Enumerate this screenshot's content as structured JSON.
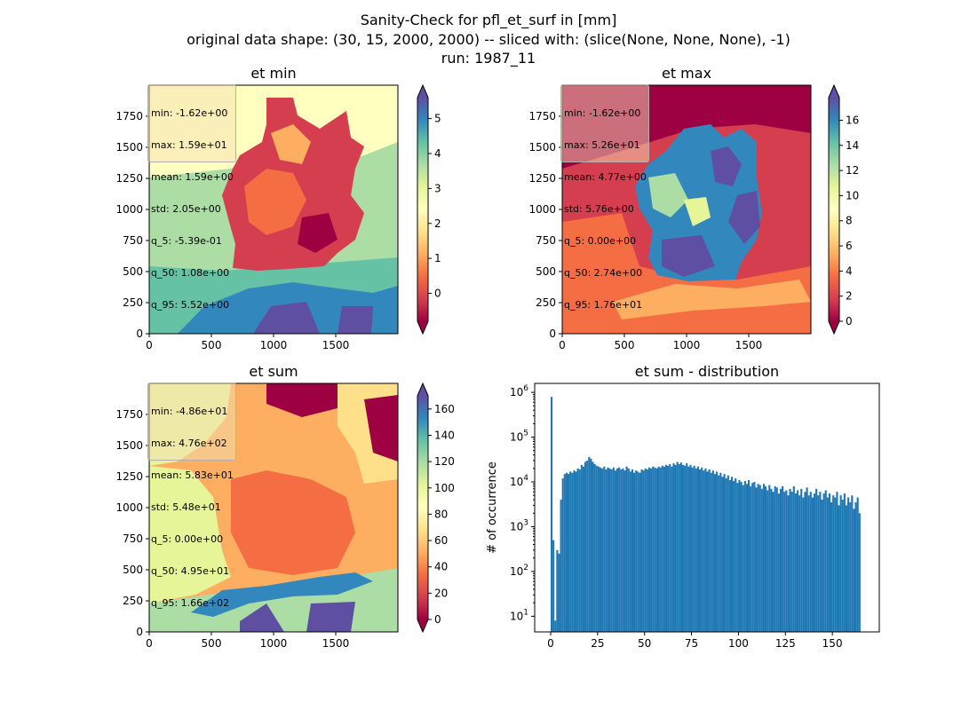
{
  "figure": {
    "title_lines": [
      "Sanity-Check for pfl_et_surf in [mm]",
      "original data shape: (30, 15, 2000, 2000) -- sliced with: (slice(None, None, None), -1)",
      "run: 1987_11"
    ]
  },
  "colors": {
    "colormap": "Spectral",
    "spectral_stops": [
      "#9e0142",
      "#d53e4f",
      "#f46d43",
      "#fdae61",
      "#fee08b",
      "#ffffbf",
      "#e6f598",
      "#abdda4",
      "#66c2a5",
      "#3288bd",
      "#5e4fa2"
    ],
    "hist_bar": "#1f77b4"
  },
  "chart_data": [
    {
      "type": "heatmap",
      "title": "et min",
      "xlim": [
        0,
        2000
      ],
      "ylim": [
        0,
        2000
      ],
      "xticks": [
        "0",
        "500",
        "1000",
        "1500"
      ],
      "yticks": [
        "0",
        "250",
        "500",
        "750",
        "1000",
        "1250",
        "1500",
        "1750"
      ],
      "colorbar": {
        "min": -0.8,
        "max": 5.6,
        "ticks": [
          "0",
          "1",
          "2",
          "3",
          "4",
          "5"
        ],
        "tick_values": [
          0,
          1,
          2,
          3,
          4,
          5
        ],
        "extend": "both"
      },
      "stats": [
        "min: -1.62e+00",
        "max: 1.59e+01",
        "mean: 1.59e+00",
        "std: 2.05e+00",
        "q_5: -5.39e-01",
        "q_50: 1.08e+00",
        "q_95: 5.52e+00"
      ]
    },
    {
      "type": "heatmap",
      "title": "et max",
      "xlim": [
        0,
        2000
      ],
      "ylim": [
        0,
        2000
      ],
      "xticks": [
        "0",
        "500",
        "1000",
        "1500"
      ],
      "yticks": [
        "0",
        "250",
        "500",
        "750",
        "1000",
        "1250",
        "1500",
        "1750"
      ],
      "colorbar": {
        "min": 0,
        "max": 17.8,
        "ticks": [
          "0",
          "2",
          "4",
          "6",
          "8",
          "10",
          "12",
          "14",
          "16"
        ],
        "tick_values": [
          0,
          2,
          4,
          6,
          8,
          10,
          12,
          14,
          16
        ],
        "extend": "both"
      },
      "stats": [
        "min: -1.62e+00",
        "max: 5.26e+01",
        "mean: 4.77e+00",
        "std: 5.76e+00",
        "q_5: 0.00e+00",
        "q_50: 2.74e+00",
        "q_95: 1.76e+01"
      ]
    },
    {
      "type": "heatmap",
      "title": "et sum",
      "xlim": [
        0,
        2000
      ],
      "ylim": [
        0,
        2000
      ],
      "xticks": [
        "0",
        "500",
        "1000",
        "1500"
      ],
      "yticks": [
        "0",
        "250",
        "500",
        "750",
        "1000",
        "1250",
        "1500",
        "1750"
      ],
      "colorbar": {
        "min": 0,
        "max": 170,
        "ticks": [
          "0",
          "20",
          "40",
          "60",
          "80",
          "100",
          "120",
          "140",
          "160"
        ],
        "tick_values": [
          0,
          20,
          40,
          60,
          80,
          100,
          120,
          140,
          160
        ],
        "extend": "both"
      },
      "stats": [
        "min: -4.86e+01",
        "max: 4.76e+02",
        "mean: 5.83e+01",
        "std: 5.48e+01",
        "q_5: 0.00e+00",
        "q_50: 4.95e+01",
        "q_95: 1.66e+02"
      ]
    },
    {
      "type": "bar",
      "title": "et sum - distribution",
      "ylabel": "# of occurrence",
      "yscale": "log",
      "xlim": [
        -8.5,
        175
      ],
      "ylim_log10": [
        0.65,
        6.2
      ],
      "xticks": [
        "0",
        "25",
        "50",
        "75",
        "100",
        "125",
        "150"
      ],
      "xtick_values": [
        0,
        25,
        50,
        75,
        100,
        125,
        150
      ],
      "yticks_exp": [
        "1",
        "2",
        "3",
        "4",
        "5",
        "6"
      ],
      "bin_width": 1,
      "bins": [
        {
          "x": 0,
          "count": 790000
        },
        {
          "x": 1,
          "count": 500
        },
        {
          "x": 2,
          "count": 8
        },
        {
          "x": 3,
          "count": 300
        },
        {
          "x": 4,
          "count": 250
        },
        {
          "x": 5,
          "count": 4000
        },
        {
          "x": 6,
          "count": 12000
        },
        {
          "x": 7,
          "count": 15000
        },
        {
          "x": 8,
          "count": 16000
        },
        {
          "x": 9,
          "count": 15000
        },
        {
          "x": 10,
          "count": 17000
        },
        {
          "x": 11,
          "count": 16000
        },
        {
          "x": 12,
          "count": 18000
        },
        {
          "x": 13,
          "count": 17000
        },
        {
          "x": 14,
          "count": 20000
        },
        {
          "x": 15,
          "count": 19000
        },
        {
          "x": 16,
          "count": 24000
        },
        {
          "x": 17,
          "count": 22000
        },
        {
          "x": 18,
          "count": 28000
        },
        {
          "x": 19,
          "count": 30000
        },
        {
          "x": 20,
          "count": 36000
        },
        {
          "x": 21,
          "count": 33000
        },
        {
          "x": 22,
          "count": 28000
        },
        {
          "x": 23,
          "count": 25000
        },
        {
          "x": 24,
          "count": 23000
        },
        {
          "x": 25,
          "count": 22000
        },
        {
          "x": 26,
          "count": 21000
        },
        {
          "x": 27,
          "count": 20000
        },
        {
          "x": 28,
          "count": 22000
        },
        {
          "x": 29,
          "count": 19000
        },
        {
          "x": 30,
          "count": 21000
        },
        {
          "x": 31,
          "count": 20000
        },
        {
          "x": 32,
          "count": 19000
        },
        {
          "x": 33,
          "count": 21000
        },
        {
          "x": 34,
          "count": 18000
        },
        {
          "x": 35,
          "count": 20000
        },
        {
          "x": 36,
          "count": 21000
        },
        {
          "x": 37,
          "count": 19000
        },
        {
          "x": 38,
          "count": 20000
        },
        {
          "x": 39,
          "count": 18000
        },
        {
          "x": 40,
          "count": 22000
        },
        {
          "x": 41,
          "count": 20000
        },
        {
          "x": 42,
          "count": 17000
        },
        {
          "x": 43,
          "count": 19000
        },
        {
          "x": 44,
          "count": 16000
        },
        {
          "x": 45,
          "count": 18000
        },
        {
          "x": 46,
          "count": 17000
        },
        {
          "x": 47,
          "count": 16000
        },
        {
          "x": 48,
          "count": 19000
        },
        {
          "x": 49,
          "count": 18000
        },
        {
          "x": 50,
          "count": 20000
        },
        {
          "x": 51,
          "count": 19000
        },
        {
          "x": 52,
          "count": 21000
        },
        {
          "x": 53,
          "count": 20000
        },
        {
          "x": 54,
          "count": 22000
        },
        {
          "x": 55,
          "count": 21000
        },
        {
          "x": 56,
          "count": 20000
        },
        {
          "x": 57,
          "count": 22000
        },
        {
          "x": 58,
          "count": 21000
        },
        {
          "x": 59,
          "count": 23000
        },
        {
          "x": 60,
          "count": 22000
        },
        {
          "x": 61,
          "count": 24000
        },
        {
          "x": 62,
          "count": 23000
        },
        {
          "x": 63,
          "count": 25000
        },
        {
          "x": 64,
          "count": 22000
        },
        {
          "x": 65,
          "count": 26000
        },
        {
          "x": 66,
          "count": 24000
        },
        {
          "x": 67,
          "count": 28000
        },
        {
          "x": 68,
          "count": 25000
        },
        {
          "x": 69,
          "count": 27000
        },
        {
          "x": 70,
          "count": 24000
        },
        {
          "x": 71,
          "count": 23000
        },
        {
          "x": 72,
          "count": 26000
        },
        {
          "x": 73,
          "count": 22000
        },
        {
          "x": 74,
          "count": 24000
        },
        {
          "x": 75,
          "count": 21000
        },
        {
          "x": 76,
          "count": 23000
        },
        {
          "x": 77,
          "count": 20000
        },
        {
          "x": 78,
          "count": 22000
        },
        {
          "x": 79,
          "count": 19000
        },
        {
          "x": 80,
          "count": 21000
        },
        {
          "x": 81,
          "count": 18000
        },
        {
          "x": 82,
          "count": 20000
        },
        {
          "x": 83,
          "count": 17000
        },
        {
          "x": 84,
          "count": 19000
        },
        {
          "x": 85,
          "count": 16000
        },
        {
          "x": 86,
          "count": 18000
        },
        {
          "x": 87,
          "count": 15000
        },
        {
          "x": 88,
          "count": 17000
        },
        {
          "x": 89,
          "count": 14000
        },
        {
          "x": 90,
          "count": 16000
        },
        {
          "x": 91,
          "count": 13000
        },
        {
          "x": 92,
          "count": 15000
        },
        {
          "x": 93,
          "count": 12000
        },
        {
          "x": 94,
          "count": 14000
        },
        {
          "x": 95,
          "count": 11000
        },
        {
          "x": 96,
          "count": 13000
        },
        {
          "x": 97,
          "count": 10500
        },
        {
          "x": 98,
          "count": 12000
        },
        {
          "x": 99,
          "count": 9500
        },
        {
          "x": 100,
          "count": 11000
        },
        {
          "x": 101,
          "count": 10000
        },
        {
          "x": 102,
          "count": 8500
        },
        {
          "x": 103,
          "count": 10500
        },
        {
          "x": 104,
          "count": 9000
        },
        {
          "x": 105,
          "count": 11000
        },
        {
          "x": 106,
          "count": 8000
        },
        {
          "x": 107,
          "count": 9500
        },
        {
          "x": 108,
          "count": 10000
        },
        {
          "x": 109,
          "count": 7500
        },
        {
          "x": 110,
          "count": 9000
        },
        {
          "x": 111,
          "count": 8500
        },
        {
          "x": 112,
          "count": 7000
        },
        {
          "x": 113,
          "count": 9000
        },
        {
          "x": 114,
          "count": 8000
        },
        {
          "x": 115,
          "count": 6500
        },
        {
          "x": 116,
          "count": 8500
        },
        {
          "x": 117,
          "count": 7000
        },
        {
          "x": 118,
          "count": 6000
        },
        {
          "x": 119,
          "count": 8000
        },
        {
          "x": 120,
          "count": 7500
        },
        {
          "x": 121,
          "count": 5500
        },
        {
          "x": 122,
          "count": 7000
        },
        {
          "x": 123,
          "count": 8000
        },
        {
          "x": 124,
          "count": 6000
        },
        {
          "x": 125,
          "count": 6500
        },
        {
          "x": 126,
          "count": 5000
        },
        {
          "x": 127,
          "count": 7000
        },
        {
          "x": 128,
          "count": 6000
        },
        {
          "x": 129,
          "count": 8000
        },
        {
          "x": 130,
          "count": 5500
        },
        {
          "x": 131,
          "count": 6500
        },
        {
          "x": 132,
          "count": 5000
        },
        {
          "x": 133,
          "count": 7000
        },
        {
          "x": 134,
          "count": 4500
        },
        {
          "x": 135,
          "count": 6000
        },
        {
          "x": 136,
          "count": 7500
        },
        {
          "x": 137,
          "count": 5000
        },
        {
          "x": 138,
          "count": 6000
        },
        {
          "x": 139,
          "count": 4500
        },
        {
          "x": 140,
          "count": 5500
        },
        {
          "x": 141,
          "count": 7000
        },
        {
          "x": 142,
          "count": 5000
        },
        {
          "x": 143,
          "count": 6000
        },
        {
          "x": 144,
          "count": 4000
        },
        {
          "x": 145,
          "count": 5500
        },
        {
          "x": 146,
          "count": 6500
        },
        {
          "x": 147,
          "count": 4500
        },
        {
          "x": 148,
          "count": 5500
        },
        {
          "x": 149,
          "count": 3500
        },
        {
          "x": 150,
          "count": 5000
        },
        {
          "x": 151,
          "count": 4500
        },
        {
          "x": 152,
          "count": 6000
        },
        {
          "x": 153,
          "count": 3000
        },
        {
          "x": 154,
          "count": 5000
        },
        {
          "x": 155,
          "count": 4000
        },
        {
          "x": 156,
          "count": 5500
        },
        {
          "x": 157,
          "count": 3000
        },
        {
          "x": 158,
          "count": 4500
        },
        {
          "x": 159,
          "count": 3500
        },
        {
          "x": 160,
          "count": 5000
        },
        {
          "x": 161,
          "count": 2500
        },
        {
          "x": 162,
          "count": 3500
        },
        {
          "x": 163,
          "count": 4500
        },
        {
          "x": 164,
          "count": 2000
        }
      ]
    }
  ]
}
